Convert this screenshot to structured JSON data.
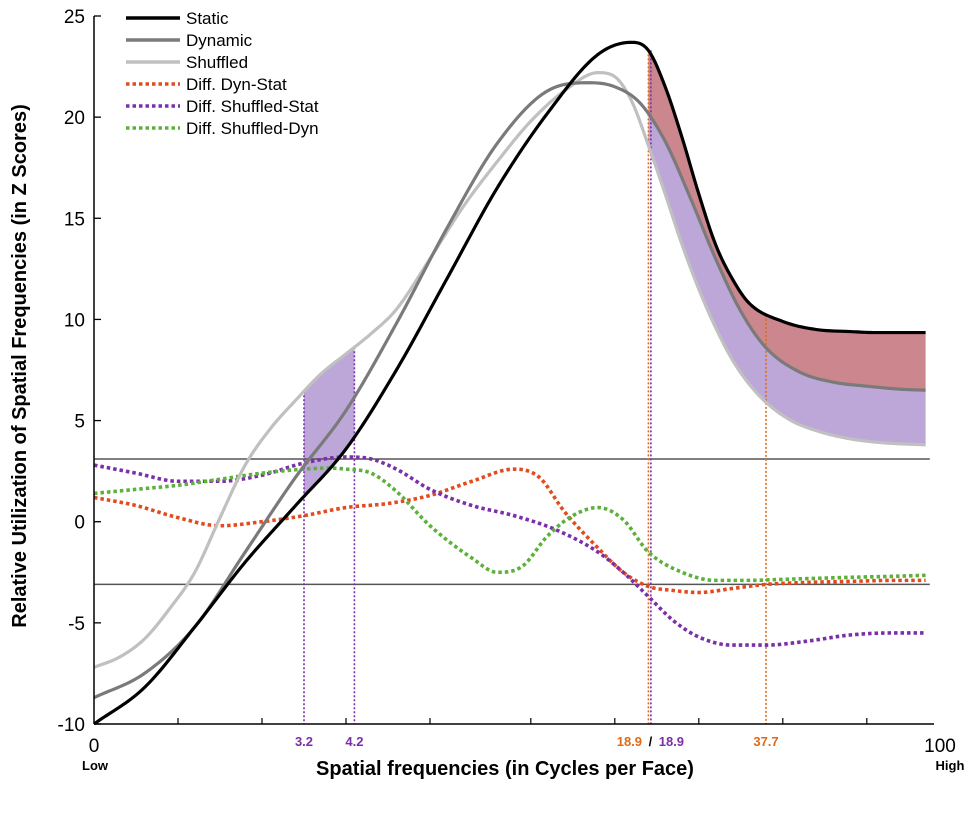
{
  "chart_data": {
    "type": "line",
    "title": "",
    "xlabel": "Spatial frequencies (in Cycles per Face)",
    "ylabel": "Relative Utilization of Spatial Frequencies (in Z Scores)",
    "xlim": [
      0,
      100
    ],
    "ylim": [
      -10,
      25
    ],
    "x_ticks": [
      "0",
      "100"
    ],
    "x_end_labels": [
      "Low",
      "High"
    ],
    "y_ticks": [
      "-10",
      "-5",
      "0",
      "5",
      "10",
      "15",
      "20",
      "25"
    ],
    "y_tick_values": [
      -10,
      -5,
      0,
      5,
      10,
      15,
      20,
      25
    ],
    "minor_x_ticks": [
      10,
      20,
      30,
      40,
      52,
      62,
      72,
      82,
      92
    ],
    "thresholds": [
      3.1,
      -3.1
    ],
    "legend_position": "top-left",
    "series": [
      {
        "name": "Static",
        "color": "#000000",
        "style": "solid",
        "x": [
          0,
          6,
          12,
          18,
          24,
          30,
          36,
          42,
          48,
          54,
          60,
          64,
          66,
          68,
          70,
          72,
          74,
          76,
          78,
          82,
          86,
          90,
          93,
          95,
          99
        ],
        "y": [
          -10,
          -8.2,
          -5.2,
          -2,
          0.8,
          3.6,
          7.5,
          12,
          16.5,
          20.2,
          23.1,
          23.7,
          23.3,
          21.5,
          19,
          16.2,
          13.7,
          12,
          10.8,
          9.9,
          9.5,
          9.4,
          9.35,
          9.35,
          9.35
        ]
      },
      {
        "name": "Dynamic",
        "color": "#7a7a7a",
        "style": "solid",
        "x": [
          0,
          6,
          12,
          18,
          24,
          30,
          36,
          42,
          48,
          54,
          59,
          62,
          65,
          68,
          71,
          74,
          77,
          80,
          84,
          88,
          92,
          96,
          99
        ],
        "y": [
          -8.7,
          -7.5,
          -5.2,
          -1.5,
          2.2,
          5.5,
          9.8,
          14.5,
          18.7,
          21.3,
          21.7,
          21.5,
          20.7,
          18.8,
          16,
          13,
          10.4,
          8.6,
          7.4,
          6.9,
          6.7,
          6.55,
          6.5
        ]
      },
      {
        "name": "Shuffled",
        "color": "#c0c0c0",
        "style": "solid",
        "x": [
          0,
          3,
          6,
          9,
          12,
          15,
          18,
          21,
          24,
          27,
          30,
          33,
          36,
          40,
          44,
          48,
          52,
          56,
          60,
          62,
          64,
          66,
          68,
          70,
          72,
          74,
          76,
          78,
          80,
          83,
          86,
          90,
          94,
          99
        ],
        "y": [
          -7.2,
          -6.7,
          -5.8,
          -4.3,
          -2.5,
          0.2,
          2.8,
          4.6,
          6,
          7.3,
          8.3,
          9.3,
          10.5,
          13,
          15.6,
          17.8,
          19.8,
          21.3,
          22.2,
          22,
          20.8,
          18.6,
          16.2,
          13.7,
          11.5,
          9.6,
          8,
          6.8,
          5.9,
          5,
          4.5,
          4.1,
          3.9,
          3.8
        ]
      },
      {
        "name": "Diff. Dyn-Stat",
        "color": "#e34a1e",
        "style": "dotted",
        "x": [
          0,
          5,
          10,
          15,
          20,
          25,
          30,
          35,
          40,
          45,
          50,
          53,
          56,
          60,
          63,
          66,
          69,
          72,
          76,
          80,
          85,
          90,
          95,
          99
        ],
        "y": [
          1.2,
          0.8,
          0.2,
          -0.2,
          0,
          0.3,
          0.7,
          0.9,
          1.3,
          2,
          2.6,
          2.2,
          0.5,
          -1.3,
          -2.5,
          -3.2,
          -3.4,
          -3.5,
          -3.3,
          -3.1,
          -3,
          -2.95,
          -2.9,
          -2.9
        ]
      },
      {
        "name": "Diff. Shuffled-Stat",
        "color": "#7b2fa8",
        "style": "dotted",
        "x": [
          0,
          5,
          10,
          15,
          20,
          25,
          30,
          33,
          36,
          40,
          45,
          50,
          55,
          60,
          63,
          66,
          69,
          72,
          76,
          80,
          85,
          90,
          95,
          99
        ],
        "y": [
          2.8,
          2.4,
          2,
          2,
          2.3,
          2.9,
          3.2,
          3.1,
          2.6,
          1.6,
          0.8,
          0.3,
          -0.4,
          -1.5,
          -2.5,
          -3.7,
          -4.9,
          -5.7,
          -6.1,
          -6.1,
          -5.9,
          -5.6,
          -5.5,
          -5.5
        ]
      },
      {
        "name": "Diff. Shuffled-Dyn",
        "color": "#5cb13a",
        "style": "dotted",
        "x": [
          0,
          5,
          10,
          15,
          20,
          25,
          28,
          30,
          33,
          36,
          40,
          45,
          48,
          51,
          54,
          57,
          60,
          63,
          66,
          70,
          74,
          78,
          82,
          86,
          90,
          95,
          99
        ],
        "y": [
          1.4,
          1.6,
          1.8,
          2.1,
          2.4,
          2.6,
          2.65,
          2.6,
          2.4,
          1.5,
          -0.2,
          -1.8,
          -2.5,
          -2.2,
          -0.7,
          0.3,
          0.7,
          0.1,
          -1.5,
          -2.5,
          -2.9,
          -2.9,
          -2.85,
          -2.8,
          -2.75,
          -2.7,
          -2.65
        ]
      }
    ],
    "shaded_regions": [
      {
        "name": "Shuffled-Stat significant low",
        "between": [
          "Shuffled",
          "Static"
        ],
        "x_range": [
          25,
          31
        ],
        "color": "#b9a2d6"
      },
      {
        "name": "Dyn-Stat significant",
        "between": [
          "Static",
          "Dynamic"
        ],
        "x_range": [
          66,
          99
        ],
        "color": "#c97f87"
      },
      {
        "name": "Shuffled-Stat significant high",
        "between": [
          "Dynamic",
          "Shuffled"
        ],
        "x_range": [
          66,
          99
        ],
        "color": "#b9a2d6"
      }
    ],
    "annotations": [
      {
        "label": "3.2",
        "x": 25,
        "color": "#7b2fa8",
        "line_to": "Shuffled"
      },
      {
        "label": "4.2",
        "x": 31,
        "color": "#7b2fa8",
        "line_to": "Shuffled"
      },
      {
        "label": "18.9",
        "x": 66,
        "color": "#e06a18",
        "line_to": "Static"
      },
      {
        "label": "18.9",
        "x": 66,
        "color": "#7b2fa8",
        "line_to": "Static"
      },
      {
        "label": "37.7",
        "x": 80,
        "color": "#e06a18",
        "line_to": "Static"
      }
    ],
    "annotation_separator": "/"
  },
  "colors": {
    "threshold": "#555555",
    "axis": "#000000"
  }
}
